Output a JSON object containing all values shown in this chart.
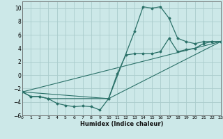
{
  "xlabel": "Humidex (Indice chaleur)",
  "bg_color": "#cce8e8",
  "grid_color": "#aacccc",
  "line_color": "#2a7068",
  "xlim": [
    0,
    23
  ],
  "ylim": [
    -6,
    11
  ],
  "xticks": [
    0,
    1,
    2,
    3,
    4,
    5,
    6,
    7,
    8,
    9,
    10,
    11,
    12,
    13,
    14,
    15,
    16,
    17,
    18,
    19,
    20,
    21,
    22,
    23
  ],
  "yticks": [
    -6,
    -4,
    -2,
    0,
    2,
    4,
    6,
    8,
    10
  ],
  "curve1_x": [
    0,
    1,
    2,
    3,
    4,
    5,
    6,
    7,
    8,
    9,
    10,
    13,
    14,
    15,
    16,
    17,
    18,
    19,
    20,
    21,
    22,
    23
  ],
  "curve1_y": [
    -2.5,
    -3.2,
    -3.2,
    -3.5,
    -4.2,
    -4.5,
    -4.7,
    -4.6,
    -4.7,
    -5.2,
    -3.5,
    6.5,
    10.2,
    10.0,
    10.2,
    8.5,
    5.5,
    5.0,
    4.7,
    5.0,
    5.0,
    5.0
  ],
  "curve2_x": [
    0,
    1,
    2,
    3,
    10,
    11,
    12,
    13,
    14,
    15,
    16,
    17,
    18,
    19,
    20,
    21,
    22,
    23
  ],
  "curve2_y": [
    -2.5,
    -3.2,
    -3.2,
    -3.5,
    -3.5,
    0.2,
    3.0,
    3.2,
    3.2,
    3.2,
    3.5,
    5.5,
    3.5,
    3.8,
    4.0,
    4.7,
    5.0,
    5.0
  ],
  "line1_x": [
    0,
    23
  ],
  "line1_y": [
    -2.5,
    5.0
  ],
  "line2_x": [
    0,
    10,
    23
  ],
  "line2_y": [
    -2.5,
    -3.5,
    5.0
  ]
}
